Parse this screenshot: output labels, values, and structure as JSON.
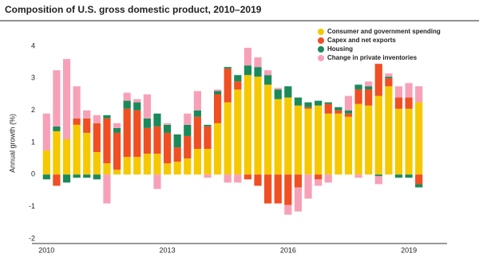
{
  "chart_data": {
    "type": "stacked-bar",
    "title": "Composition of U.S. gross domestic product, 2010–2019",
    "y_label": "Annual growth (%)",
    "categories": [
      "2010",
      null,
      null,
      null,
      null,
      null,
      null,
      null,
      null,
      null,
      null,
      null,
      "2013",
      null,
      null,
      null,
      null,
      null,
      null,
      null,
      null,
      null,
      null,
      null,
      "2016",
      null,
      null,
      null,
      null,
      null,
      null,
      null,
      null,
      null,
      null,
      null,
      "2019",
      null
    ],
    "series": [
      {
        "name": "Consumer and government spending",
        "color": "#f5c800",
        "values": [
          0.75,
          1.35,
          1.1,
          1.55,
          1.3,
          0.7,
          0.35,
          0.15,
          0.55,
          0.55,
          0.65,
          0.65,
          0.35,
          0.4,
          0.5,
          0.8,
          0.8,
          1.6,
          2.25,
          2.65,
          3.1,
          3.05,
          2.8,
          2.35,
          2.4,
          2.15,
          2.05,
          2.15,
          1.9,
          1.9,
          1.8,
          2.2,
          2.15,
          2.45,
          2.75,
          2.05,
          2.05,
          2.25
        ]
      },
      {
        "name": "Capex and net exports",
        "color": "#f04e23",
        "values": [
          0,
          -0.35,
          0,
          0.2,
          0.45,
          0.9,
          1.4,
          1.15,
          1.5,
          1.45,
          0.8,
          0.85,
          0.95,
          0.45,
          0.7,
          1.0,
          0.7,
          0.9,
          1.05,
          0.25,
          -0.15,
          -0.35,
          -0.9,
          -0.9,
          -0.95,
          -0.4,
          0.05,
          -0.15,
          0.3,
          0.1,
          0.1,
          0.45,
          0.5,
          1.0,
          0.25,
          0.35,
          0.35,
          -0.3
        ]
      },
      {
        "name": "Housing",
        "color": "#1a8a5a",
        "values": [
          -0.15,
          0.15,
          -0.25,
          -0.1,
          -0.1,
          -0.15,
          0.1,
          0.15,
          0.25,
          0.25,
          0.3,
          0.4,
          0.25,
          0.4,
          0.35,
          0.2,
          0.05,
          0.1,
          0.05,
          0.2,
          0.3,
          0.3,
          0.3,
          0.3,
          0.35,
          0.25,
          0.15,
          0.15,
          0.05,
          0.1,
          0.1,
          0.15,
          0.1,
          -0.05,
          0.05,
          -0.1,
          -0.1,
          -0.1
        ]
      },
      {
        "name": "Change in private inventories",
        "color": "#f7a1b8",
        "values": [
          1.15,
          1.75,
          2.5,
          1.0,
          0.25,
          0.25,
          -0.9,
          0.15,
          0.25,
          0.1,
          0.75,
          -0.45,
          0.05,
          0,
          0.35,
          0.6,
          -0.1,
          0.05,
          -0.25,
          -0.25,
          0.55,
          0.3,
          0.15,
          0.05,
          -0.3,
          -0.75,
          -0.75,
          -0.2,
          -0.25,
          0,
          0.45,
          -0.1,
          0.15,
          -0.25,
          0.1,
          0.35,
          0.45,
          0.5
        ]
      }
    ],
    "ylim": [
      -2,
      4
    ],
    "yticks": [
      -2,
      -1,
      0,
      1,
      2,
      3,
      4
    ],
    "grid": false
  }
}
